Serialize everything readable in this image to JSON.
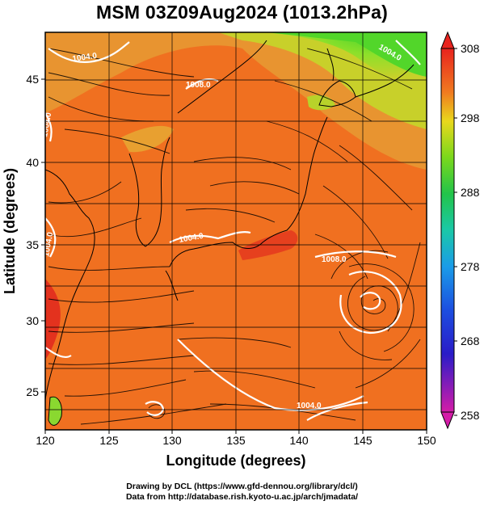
{
  "title": "MSM 03Z09Aug2024 (1013.2hPa)",
  "map": {
    "xlabel": "Longitude (degrees)",
    "ylabel": "Latitude  (degrees)",
    "lon_range": [
      120,
      150
    ],
    "lat_range": [
      22.5,
      47.5
    ],
    "lon_ticks": [
      "120",
      "125",
      "130",
      "135",
      "140",
      "145",
      "150"
    ],
    "lat_ticks": [
      "25",
      "30",
      "35",
      "40",
      "45"
    ],
    "grid": true,
    "contour_labels": [
      "1004.0",
      "1004.0",
      "1004.0",
      "1004.0",
      "1008.0",
      "1004.0",
      "1004.0",
      "1008.0"
    ],
    "low_center": {
      "lon": 146,
      "lat": 31.3
    }
  },
  "colorbar": {
    "ticks": [
      "308",
      "298",
      "288",
      "278",
      "268",
      "258"
    ],
    "range": [
      258,
      308
    ]
  },
  "credits": {
    "line1": "Drawing by DCL (https://www.gfd-dennou.org/library/dcl/)",
    "line2": "Data from http://database.rish.kyoto-u.ac.jp/arch/jmadata/"
  },
  "colors": {
    "warm": "#f07020",
    "hot": "#e63a1e",
    "mid": "#e8a030",
    "cool": "#5cd82a",
    "contour": "#ffffff",
    "streamline": "#000000"
  }
}
